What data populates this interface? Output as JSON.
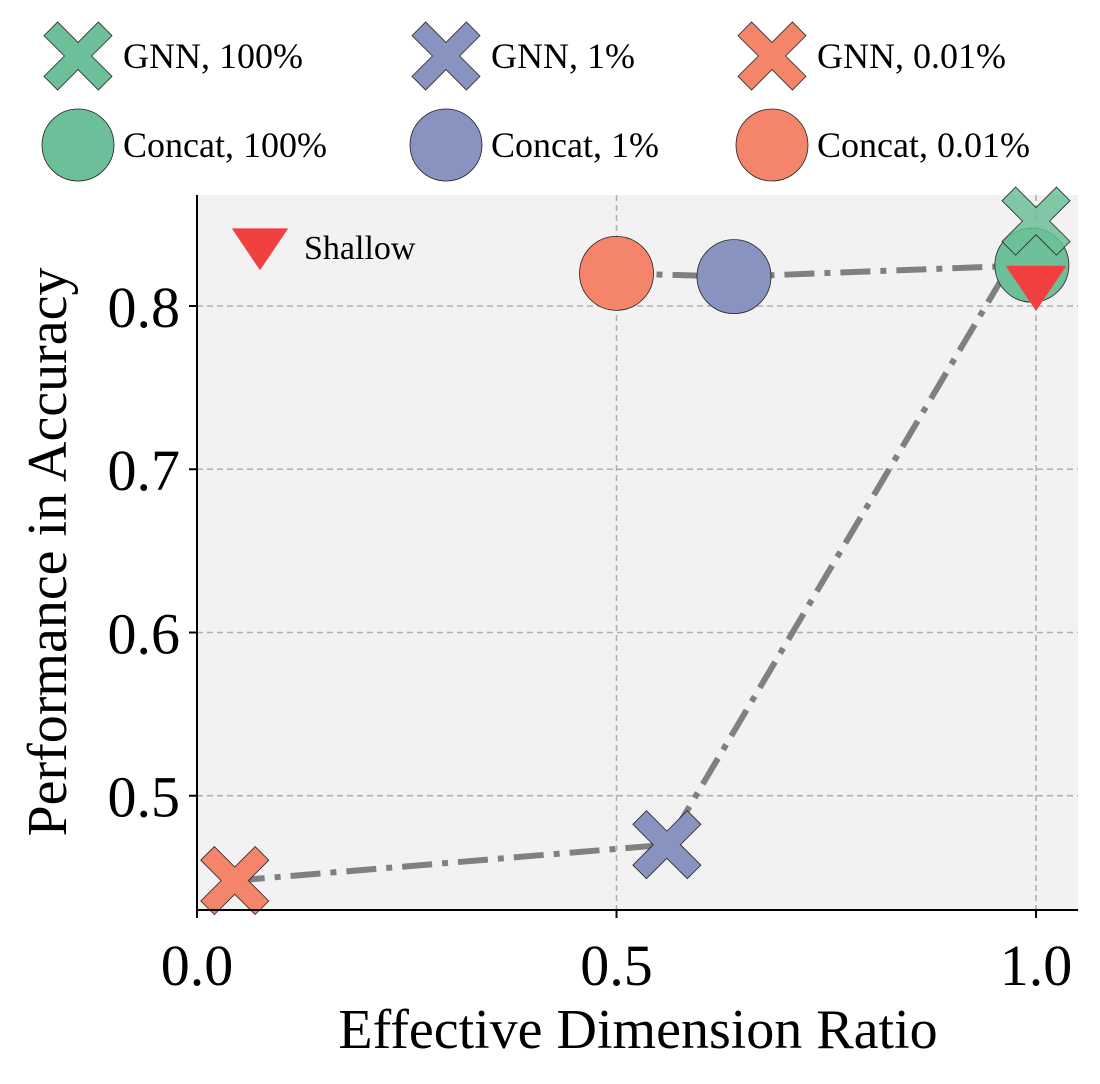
{
  "chart_data": {
    "type": "scatter",
    "title": "",
    "xlabel": "Effective Dimension Ratio",
    "ylabel": "Performance in Accuracy",
    "xlim": [
      0.0,
      1.05
    ],
    "ylim": [
      0.43,
      0.868
    ],
    "xticks": [
      0.0,
      0.5,
      1.0
    ],
    "xtick_labels": [
      "0.0",
      "0.5",
      "1.0"
    ],
    "yticks": [
      0.5,
      0.6,
      0.7,
      0.8
    ],
    "ytick_labels": [
      "0.5",
      "0.6",
      "0.7",
      "0.8"
    ],
    "grid": true,
    "legend_placement": "top",
    "colors": {
      "100%": "#6cbf98",
      "1%": "#8893c0",
      "0.01%": "#f4856b",
      "shallow": "#f24040",
      "line": "#808080",
      "plot_bg": "#f2f2f2"
    },
    "series": [
      {
        "name": "GNN, 100%",
        "marker": "x",
        "color": "#6cbf98",
        "x": [
          1.0
        ],
        "y": [
          0.852
        ]
      },
      {
        "name": "GNN, 1%",
        "marker": "x",
        "color": "#8893c0",
        "x": [
          0.56
        ],
        "y": [
          0.47
        ]
      },
      {
        "name": "GNN, 0.01%",
        "marker": "x",
        "color": "#f4856b",
        "x": [
          0.045
        ],
        "y": [
          0.448
        ]
      },
      {
        "name": "Concat, 100%",
        "marker": "circle",
        "color": "#6cbf98",
        "x": [
          0.995
        ],
        "y": [
          0.825
        ]
      },
      {
        "name": "Concat, 1%",
        "marker": "circle",
        "color": "#8893c0",
        "x": [
          0.64
        ],
        "y": [
          0.818
        ]
      },
      {
        "name": "Concat, 0.01%",
        "marker": "circle",
        "color": "#f4856b",
        "x": [
          0.5
        ],
        "y": [
          0.82
        ]
      },
      {
        "name": "Shallow",
        "marker": "triangle-down",
        "color": "#f24040",
        "x": [
          1.0
        ],
        "y": [
          0.813
        ]
      }
    ],
    "lines": [
      {
        "style": "dashdot",
        "color": "#808080",
        "points": [
          [
            0.045,
            0.448
          ],
          [
            0.56,
            0.47
          ],
          [
            1.0,
            0.852
          ]
        ]
      },
      {
        "style": "dashdot",
        "color": "#808080",
        "points": [
          [
            0.5,
            0.82
          ],
          [
            0.64,
            0.818
          ],
          [
            0.995,
            0.825
          ]
        ]
      }
    ],
    "legend": [
      {
        "label": "GNN, 100%",
        "marker": "x",
        "color": "#6cbf98"
      },
      {
        "label": "GNN, 1%",
        "marker": "x",
        "color": "#8893c0"
      },
      {
        "label": "GNN, 0.01%",
        "marker": "x",
        "color": "#f4856b"
      },
      {
        "label": "Concat, 100%",
        "marker": "circle",
        "color": "#6cbf98"
      },
      {
        "label": "Concat, 1%",
        "marker": "circle",
        "color": "#8893c0"
      },
      {
        "label": "Concat, 0.01%",
        "marker": "circle",
        "color": "#f4856b"
      }
    ],
    "inner_legend": [
      {
        "label": "Shallow",
        "marker": "triangle-down",
        "color": "#f24040"
      }
    ]
  }
}
